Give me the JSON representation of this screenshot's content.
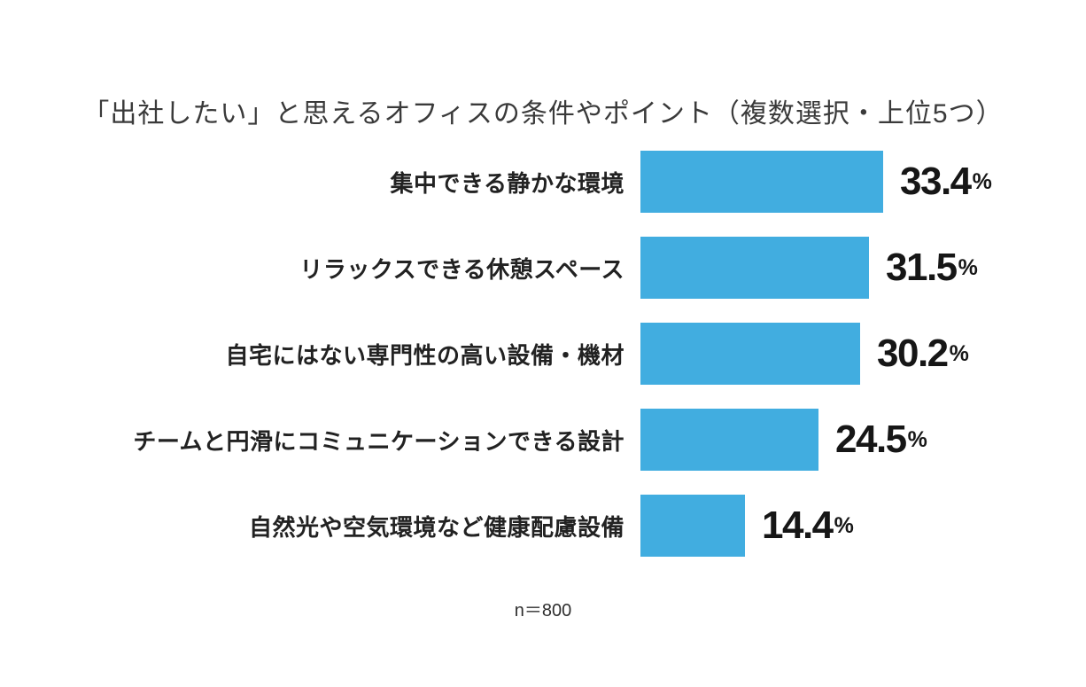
{
  "title": "「出社したい」と思えるオフィスの条件やポイント（複数選択・上位5つ）",
  "note": "n＝800",
  "colors": {
    "bar": "#41ADE0",
    "title_text": "#3a3a3a",
    "label_text": "#222222",
    "value_text": "#161616"
  },
  "chart_data": {
    "type": "bar",
    "orientation": "horizontal",
    "title": "「出社したい」と思えるオフィスの条件やポイント（複数選択・上位5つ）",
    "categories": [
      "集中できる静かな環境",
      "リラックスできる休憩スペース",
      "自宅にはない専門性の高い設備・機材",
      "チームと円滑にコミュニケーションできる設計",
      "自然光や空気環境など健康配慮設備"
    ],
    "values": [
      33.4,
      31.5,
      30.2,
      24.5,
      14.4
    ],
    "value_suffix": "%",
    "xlim": [
      0,
      33.4
    ],
    "grid": false,
    "legend": "none",
    "sample_size_note": "n＝800"
  }
}
